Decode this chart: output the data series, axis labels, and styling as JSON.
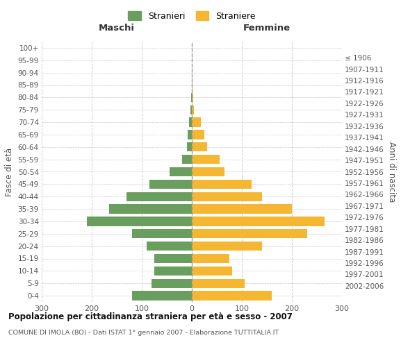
{
  "age_groups": [
    "0-4",
    "5-9",
    "10-14",
    "15-19",
    "20-24",
    "25-29",
    "30-34",
    "35-39",
    "40-44",
    "45-49",
    "50-54",
    "55-59",
    "60-64",
    "65-69",
    "70-74",
    "75-79",
    "80-84",
    "85-89",
    "90-94",
    "95-99",
    "100+"
  ],
  "birth_years": [
    "2002-2006",
    "1997-2001",
    "1992-1996",
    "1987-1991",
    "1982-1986",
    "1977-1981",
    "1972-1976",
    "1967-1971",
    "1962-1966",
    "1957-1961",
    "1952-1956",
    "1947-1951",
    "1942-1946",
    "1937-1941",
    "1932-1936",
    "1927-1931",
    "1922-1926",
    "1917-1921",
    "1912-1916",
    "1907-1911",
    "≤ 1906"
  ],
  "males": [
    120,
    80,
    75,
    75,
    90,
    120,
    210,
    165,
    130,
    85,
    45,
    20,
    10,
    8,
    5,
    3,
    2,
    0,
    0,
    0,
    0
  ],
  "females": [
    160,
    105,
    80,
    75,
    140,
    230,
    265,
    200,
    140,
    120,
    65,
    55,
    30,
    25,
    18,
    4,
    3,
    1,
    0,
    0,
    0
  ],
  "male_color": "#6a9e5e",
  "female_color": "#f5b731",
  "title": "Popolazione per cittadinanza straniera per età e sesso - 2007",
  "subtitle": "COMUNE DI IMOLA (BO) - Dati ISTAT 1° gennaio 2007 - Elaborazione TUTTITALIA.IT",
  "xlabel_left": "Maschi",
  "xlabel_right": "Femmine",
  "ylabel_left": "Fasce di età",
  "ylabel_right": "Anni di nascita",
  "legend_stranieri": "Stranieri",
  "legend_straniere": "Straniere",
  "xlim": 300,
  "background_color": "#ffffff",
  "grid_color": "#cccccc"
}
